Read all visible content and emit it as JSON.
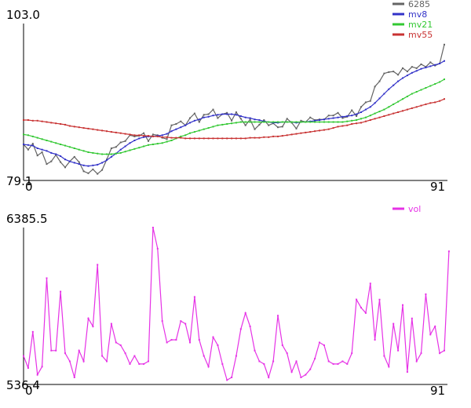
{
  "chart_data": [
    {
      "type": "line",
      "panel": "price",
      "x_start": 0,
      "x_end": 91,
      "ylim": [
        79.1,
        103.0
      ],
      "tick_labels": {
        "y_top": "103.0",
        "y_bottom": "79.1",
        "x_left": "0",
        "x_right": "91"
      },
      "legend": "top-right",
      "series": [
        {
          "name": "6285",
          "color": "#646464",
          "values": [
            84.6,
            83.8,
            84.7,
            82.9,
            83.4,
            81.6,
            82.0,
            83.0,
            81.9,
            81.1,
            82.0,
            82.7,
            81.9,
            80.5,
            80.2,
            80.8,
            80.1,
            80.7,
            82.3,
            84.0,
            84.2,
            84.9,
            85.1,
            86.0,
            85.8,
            85.9,
            86.3,
            85.1,
            86.1,
            86.0,
            85.6,
            85.4,
            87.5,
            87.7,
            88.1,
            87.5,
            88.6,
            89.3,
            88.0,
            89.1,
            89.2,
            89.9,
            88.6,
            89.2,
            89.4,
            88.2,
            89.5,
            88.5,
            87.5,
            88.4,
            86.9,
            87.6,
            88.3,
            87.5,
            87.8,
            87.2,
            87.3,
            88.5,
            87.9,
            87.0,
            88.2,
            88.0,
            88.7,
            88.3,
            88.4,
            88.4,
            89.0,
            89.0,
            89.4,
            88.6,
            88.8,
            89.8,
            88.9,
            90.3,
            91.0,
            91.2,
            93.4,
            94.2,
            95.4,
            95.6,
            95.7,
            95.2,
            96.2,
            95.7,
            96.4,
            96.2,
            96.8,
            96.4,
            97.1,
            96.6,
            96.9,
            99.8
          ]
        },
        {
          "name": "mv8",
          "color": "#3232c8",
          "values": [
            84.6,
            84.5,
            84.4,
            84.0,
            83.8,
            83.6,
            83.3,
            83.1,
            82.8,
            82.3,
            82.0,
            81.8,
            81.6,
            81.4,
            81.3,
            81.4,
            81.5,
            81.8,
            82.2,
            82.7,
            83.2,
            83.8,
            84.3,
            84.8,
            85.2,
            85.5,
            85.7,
            85.8,
            85.8,
            85.9,
            86.0,
            86.2,
            86.6,
            86.9,
            87.2,
            87.5,
            87.9,
            88.2,
            88.4,
            88.7,
            88.8,
            89.0,
            89.1,
            89.2,
            89.2,
            89.2,
            89.1,
            88.9,
            88.7,
            88.6,
            88.4,
            88.3,
            88.1,
            88.0,
            87.9,
            87.9,
            88.0,
            88.0,
            88.0,
            87.9,
            88.0,
            88.0,
            88.1,
            88.2,
            88.3,
            88.4,
            88.5,
            88.6,
            88.7,
            88.8,
            88.9,
            89.0,
            89.2,
            89.5,
            89.9,
            90.3,
            90.9,
            91.6,
            92.3,
            93.0,
            93.6,
            94.2,
            94.7,
            95.1,
            95.5,
            95.8,
            96.1,
            96.3,
            96.5,
            96.7,
            96.9,
            97.3
          ]
        },
        {
          "name": "mv21",
          "color": "#32c832",
          "values": [
            86.1,
            86.0,
            85.8,
            85.6,
            85.4,
            85.2,
            85.0,
            84.8,
            84.6,
            84.4,
            84.2,
            84.0,
            83.8,
            83.6,
            83.4,
            83.3,
            83.2,
            83.1,
            83.1,
            83.1,
            83.2,
            83.3,
            83.5,
            83.7,
            83.9,
            84.1,
            84.3,
            84.5,
            84.6,
            84.7,
            84.8,
            85.0,
            85.2,
            85.5,
            85.8,
            86.0,
            86.3,
            86.5,
            86.7,
            86.9,
            87.1,
            87.3,
            87.5,
            87.6,
            87.7,
            87.8,
            87.9,
            88.0,
            88.0,
            88.0,
            88.0,
            88.0,
            88.0,
            88.0,
            88.0,
            88.0,
            88.0,
            88.0,
            88.0,
            88.0,
            88.0,
            88.0,
            88.0,
            88.0,
            88.0,
            88.0,
            88.0,
            88.0,
            88.0,
            88.0,
            88.1,
            88.2,
            88.3,
            88.5,
            88.7,
            89.0,
            89.3,
            89.6,
            89.9,
            90.3,
            90.7,
            91.1,
            91.5,
            91.9,
            92.3,
            92.6,
            92.9,
            93.2,
            93.5,
            93.8,
            94.1,
            94.5
          ]
        },
        {
          "name": "mv55",
          "color": "#c83232",
          "values": [
            88.3,
            88.3,
            88.2,
            88.2,
            88.1,
            88.0,
            87.9,
            87.8,
            87.7,
            87.6,
            87.4,
            87.3,
            87.2,
            87.1,
            87.0,
            86.9,
            86.8,
            86.7,
            86.6,
            86.5,
            86.4,
            86.3,
            86.2,
            86.1,
            86.0,
            86.0,
            85.9,
            85.9,
            85.8,
            85.8,
            85.7,
            85.7,
            85.6,
            85.6,
            85.6,
            85.5,
            85.5,
            85.5,
            85.5,
            85.5,
            85.5,
            85.5,
            85.5,
            85.5,
            85.5,
            85.5,
            85.5,
            85.5,
            85.5,
            85.6,
            85.6,
            85.6,
            85.7,
            85.7,
            85.8,
            85.8,
            85.9,
            86.0,
            86.1,
            86.2,
            86.3,
            86.4,
            86.5,
            86.6,
            86.7,
            86.8,
            86.9,
            87.1,
            87.3,
            87.4,
            87.5,
            87.7,
            87.8,
            87.9,
            88.1,
            88.3,
            88.5,
            88.7,
            88.9,
            89.1,
            89.3,
            89.5,
            89.7,
            89.9,
            90.1,
            90.3,
            90.5,
            90.7,
            90.9,
            91.0,
            91.2,
            91.5
          ]
        }
      ]
    },
    {
      "type": "line",
      "panel": "volume",
      "x_start": 0,
      "x_end": 91,
      "ylim": [
        536.4,
        6385.5
      ],
      "tick_labels": {
        "y_top": "6385.5",
        "y_bottom": "536.4",
        "x_left": "0",
        "x_right": "91"
      },
      "legend": "top-right",
      "series": [
        {
          "name": "vol",
          "color": "#e632e6",
          "values": [
            1600,
            1150,
            2500,
            900,
            1200,
            4500,
            1800,
            1800,
            4000,
            1700,
            1400,
            800,
            1800,
            1400,
            3000,
            2700,
            5000,
            1600,
            1400,
            2800,
            2100,
            2000,
            1700,
            1300,
            1600,
            1300,
            1300,
            1400,
            6385.5,
            5600,
            2900,
            2100,
            2200,
            2200,
            2900,
            2800,
            2100,
            3800,
            2200,
            1600,
            1200,
            2300,
            2000,
            1300,
            700,
            800,
            1600,
            2600,
            3200,
            2700,
            1800,
            1400,
            1300,
            800,
            1400,
            3100,
            2000,
            1700,
            1000,
            1400,
            800,
            900,
            1100,
            1500,
            2100,
            2000,
            1400,
            1300,
            1300,
            1400,
            1300,
            1700,
            3700,
            3400,
            3200,
            4300,
            2200,
            3700,
            1600,
            1200,
            2800,
            1800,
            3500,
            1000,
            3000,
            1400,
            1700,
            3900,
            2400,
            2700,
            1700,
            1800,
            5500
          ]
        }
      ]
    }
  ]
}
